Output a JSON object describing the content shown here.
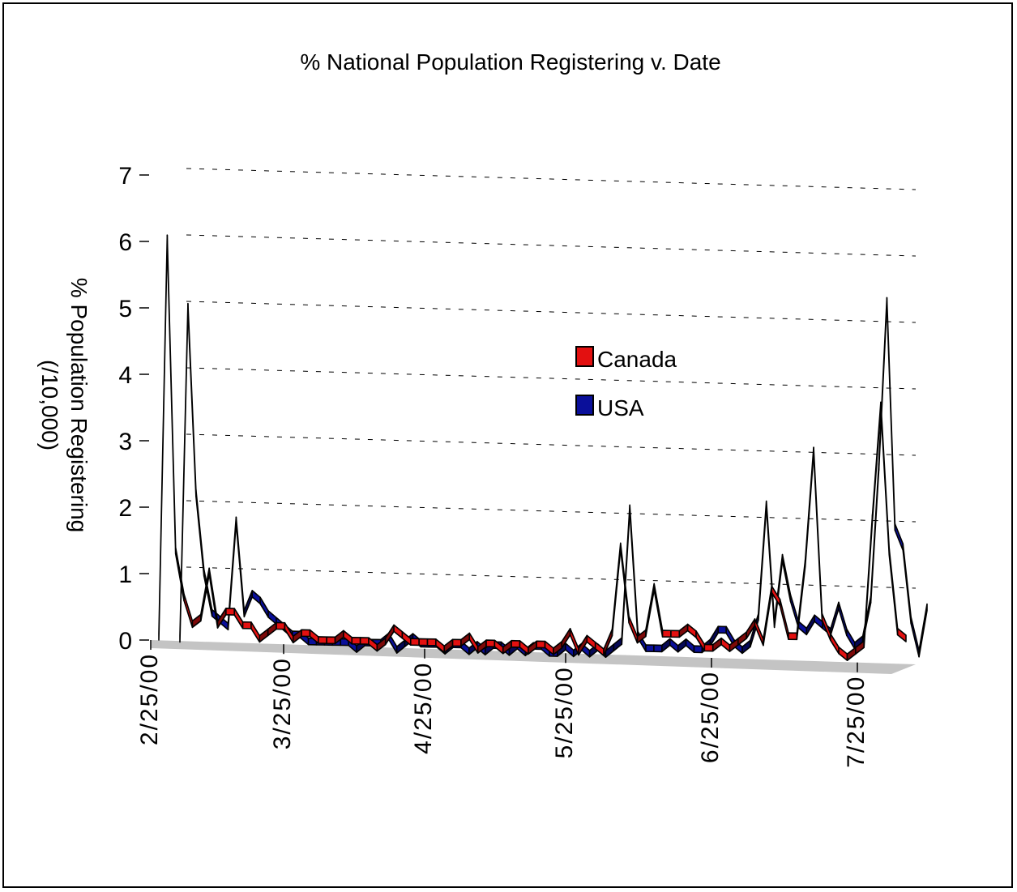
{
  "chart_data": {
    "type": "line",
    "style": "3d-ribbon",
    "title": "% National Population Registering v. Date",
    "ylabel_line1": "% Population Registering",
    "ylabel_line2": "(/10,000)",
    "xlabel": "",
    "ylim": [
      0,
      7
    ],
    "y_ticks": [
      "0",
      "1",
      "2",
      "3",
      "4",
      "5",
      "6",
      "7"
    ],
    "x_tick_labels": [
      "2/25/00",
      "3/25/00",
      "4/25/00",
      "5/25/00",
      "6/25/00",
      "7/25/00"
    ],
    "grid": "dashed horizontal",
    "legend_position": "center-right",
    "series": [
      {
        "name": "Canada",
        "color": "#e31010",
        "values": [
          0.1,
          6.1,
          1.4,
          0.7,
          0.3,
          0.4,
          1.1,
          0.3,
          0.5,
          0.5,
          0.3,
          0.3,
          0.1,
          0.2,
          0.3,
          0.3,
          0.1,
          0.2,
          0.2,
          0.1,
          0.1,
          0.1,
          0.2,
          0.1,
          0.1,
          0.1,
          0.0,
          0.1,
          0.3,
          0.2,
          0.1,
          0.1,
          0.1,
          0.1,
          0.0,
          0.1,
          0.1,
          0.2,
          0.0,
          0.1,
          0.1,
          0.0,
          0.1,
          0.1,
          0.0,
          0.1,
          0.1,
          0.0,
          0.1,
          0.3,
          0.0,
          0.2,
          0.1,
          0.0,
          0.3,
          1.6,
          0.5,
          0.2,
          0.3,
          1.0,
          0.3,
          0.3,
          0.3,
          0.4,
          0.3,
          0.1,
          0.1,
          0.2,
          0.1,
          0.2,
          0.3,
          0.5,
          0.2,
          1.0,
          0.8,
          0.3,
          0.3,
          1.4,
          3.1,
          0.6,
          0.3,
          0.1,
          0.0,
          0.1,
          0.2,
          2.1,
          3.8,
          1.6,
          0.4,
          0.3
        ]
      },
      {
        "name": "USA",
        "color": "#0a0f9a",
        "values": [
          0.1,
          5.1,
          2.3,
          1.1,
          0.5,
          0.4,
          0.3,
          1.9,
          0.5,
          0.8,
          0.7,
          0.5,
          0.4,
          0.3,
          0.2,
          0.2,
          0.1,
          0.1,
          0.1,
          0.1,
          0.1,
          0.1,
          0.0,
          0.1,
          0.1,
          0.1,
          0.2,
          0.0,
          0.1,
          0.2,
          0.1,
          0.1,
          0.1,
          0.0,
          0.1,
          0.1,
          0.0,
          0.1,
          0.0,
          0.1,
          0.1,
          0.0,
          0.1,
          0.0,
          0.1,
          0.1,
          0.0,
          0.0,
          0.1,
          0.0,
          0.1,
          0.0,
          0.1,
          0.0,
          0.1,
          0.2,
          2.2,
          0.3,
          0.1,
          0.1,
          0.1,
          0.2,
          0.1,
          0.2,
          0.1,
          0.1,
          0.2,
          0.4,
          0.4,
          0.2,
          0.1,
          0.2,
          0.6,
          2.3,
          0.5,
          1.5,
          0.9,
          0.5,
          0.4,
          0.6,
          0.5,
          0.4,
          0.8,
          0.4,
          0.2,
          0.3,
          0.9,
          2.9,
          5.4,
          2.0,
          1.7,
          0.6,
          0.1,
          0.8
        ]
      }
    ]
  }
}
